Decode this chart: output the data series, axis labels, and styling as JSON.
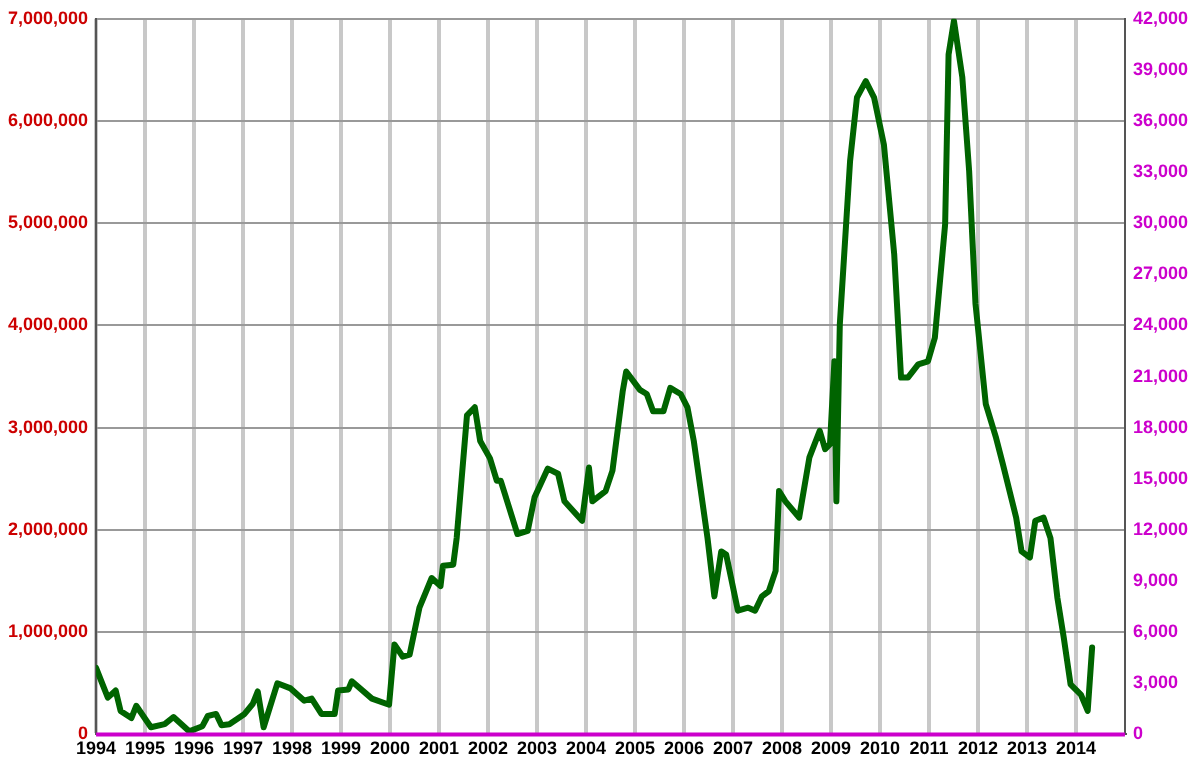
{
  "chart_data": {
    "type": "line",
    "grid": true,
    "legend": false,
    "marker": "none",
    "line_style": "solid",
    "xlim": [
      1994,
      2015
    ],
    "xticks": [
      1994,
      1995,
      1996,
      1997,
      1998,
      1999,
      2000,
      2001,
      2002,
      2003,
      2004,
      2005,
      2006,
      2007,
      2008,
      2009,
      2010,
      2011,
      2012,
      2013,
      2014
    ],
    "ylim": [
      0,
      7000000
    ],
    "yticks": [
      {
        "value": 0,
        "label": "0"
      },
      {
        "value": 1000000,
        "label": "1,000,000"
      },
      {
        "value": 2000000,
        "label": "2,000,000"
      },
      {
        "value": 3000000,
        "label": "3,000,000"
      },
      {
        "value": 4000000,
        "label": "4,000,000"
      },
      {
        "value": 5000000,
        "label": "5,000,000"
      },
      {
        "value": 6000000,
        "label": "6,000,000"
      },
      {
        "value": 7000000,
        "label": "7,000,000"
      }
    ],
    "y2lim": [
      0,
      42000
    ],
    "y2ticks": [
      {
        "value": 0,
        "label": "0"
      },
      {
        "value": 3000,
        "label": "3,000"
      },
      {
        "value": 6000,
        "label": "6,000"
      },
      {
        "value": 9000,
        "label": "9,000"
      },
      {
        "value": 12000,
        "label": "12,000"
      },
      {
        "value": 15000,
        "label": "15,000"
      },
      {
        "value": 18000,
        "label": "18,000"
      },
      {
        "value": 21000,
        "label": "21,000"
      },
      {
        "value": 24000,
        "label": "24,000"
      },
      {
        "value": 27000,
        "label": "27,000"
      },
      {
        "value": 30000,
        "label": "30,000"
      },
      {
        "value": 33000,
        "label": "33,000"
      },
      {
        "value": 36000,
        "label": "36,000"
      },
      {
        "value": 39000,
        "label": "39,000"
      },
      {
        "value": 42000,
        "label": "42,000"
      }
    ],
    "ref_lines": [
      {
        "axis": "y",
        "value": 0,
        "color": "#cc00cc"
      }
    ],
    "series": [
      {
        "color": "#006400",
        "x": [
          1994.0,
          1994.24,
          1994.4,
          1994.5,
          1994.72,
          1994.82,
          1995.12,
          1995.4,
          1995.58,
          1995.9,
          1996.17,
          1996.28,
          1996.45,
          1996.56,
          1996.72,
          1997.03,
          1997.2,
          1997.3,
          1997.42,
          1997.7,
          1997.97,
          1998.25,
          1998.4,
          1998.6,
          1998.87,
          1998.94,
          1999.15,
          1999.22,
          1999.63,
          1999.98,
          2000.09,
          2000.26,
          2000.4,
          2000.6,
          2000.85,
          2001.03,
          2001.08,
          2001.29,
          2001.36,
          2001.57,
          2001.73,
          2001.84,
          2002.04,
          2002.18,
          2002.26,
          2002.6,
          2002.81,
          2002.95,
          2003.22,
          2003.43,
          2003.56,
          2003.92,
          2004.06,
          2004.13,
          2004.4,
          2004.54,
          2004.75,
          2004.82,
          2005.1,
          2005.24,
          2005.37,
          2005.58,
          2005.72,
          2005.93,
          2006.07,
          2006.2,
          2006.48,
          2006.62,
          2006.76,
          2006.86,
          2007.1,
          2007.31,
          2007.45,
          2007.59,
          2007.73,
          2007.87,
          2007.94,
          2008.07,
          2008.35,
          2008.56,
          2008.77,
          2008.88,
          2008.98,
          2009.07,
          2009.11,
          2009.18,
          2009.39,
          2009.53,
          2009.71,
          2009.88,
          2010.08,
          2010.29,
          2010.43,
          2010.57,
          2010.78,
          2010.98,
          2011.12,
          2011.33,
          2011.4,
          2011.51,
          2011.68,
          2011.82,
          2011.95,
          2012.16,
          2012.37,
          2012.51,
          2012.78,
          2012.89,
          2013.06,
          2013.17,
          2013.34,
          2013.48,
          2013.62,
          2013.75,
          2013.89,
          2014.1,
          2014.24,
          2014.33
        ],
        "values": [
          650000,
          360000,
          430000,
          230000,
          160000,
          280000,
          70000,
          100000,
          170000,
          30000,
          80000,
          180000,
          200000,
          90000,
          100000,
          200000,
          300000,
          420000,
          70000,
          500000,
          450000,
          330000,
          350000,
          200000,
          200000,
          430000,
          440000,
          520000,
          350000,
          290000,
          880000,
          760000,
          780000,
          1240000,
          1530000,
          1450000,
          1650000,
          1660000,
          1920000,
          3120000,
          3200000,
          2870000,
          2700000,
          2480000,
          2480000,
          1960000,
          1990000,
          2320000,
          2600000,
          2550000,
          2280000,
          2090000,
          2610000,
          2280000,
          2380000,
          2580000,
          3360000,
          3550000,
          3370000,
          3330000,
          3160000,
          3160000,
          3390000,
          3330000,
          3200000,
          2870000,
          1920000,
          1350000,
          1790000,
          1760000,
          1210000,
          1240000,
          1210000,
          1350000,
          1400000,
          1600000,
          2380000,
          2280000,
          2120000,
          2710000,
          2970000,
          2790000,
          2840000,
          3650000,
          2280000,
          4010000,
          5610000,
          6230000,
          6390000,
          6230000,
          5770000,
          4700000,
          3490000,
          3490000,
          3620000,
          3650000,
          3880000,
          4990000,
          6650000,
          6980000,
          6430000,
          5510000,
          4210000,
          3230000,
          2900000,
          2640000,
          2120000,
          1790000,
          1730000,
          2090000,
          2120000,
          1920000,
          1340000,
          950000,
          490000,
          390000,
          230000,
          850000
        ]
      }
    ]
  }
}
